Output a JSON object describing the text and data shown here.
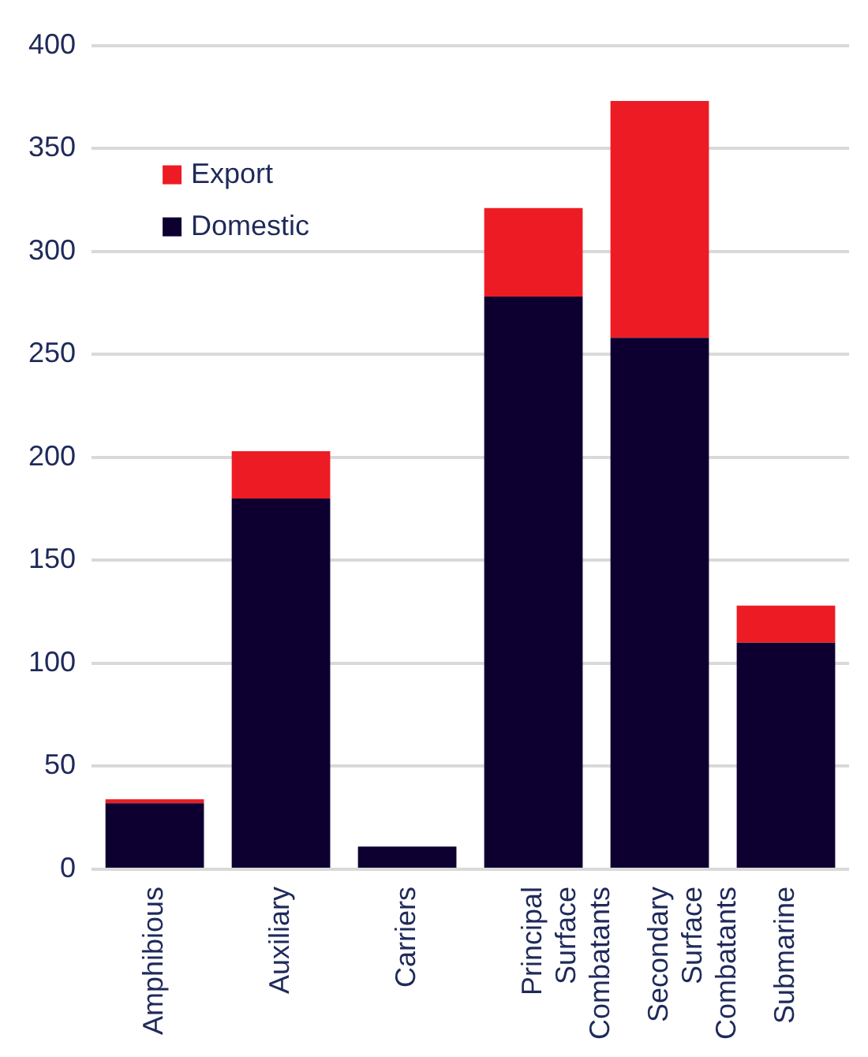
{
  "chart_data": {
    "type": "bar",
    "stacked": true,
    "categories": [
      "Amphibious",
      "Auxiliary",
      "Carriers",
      "Principal Surface Combatants",
      "Secondary Surface Combatants",
      "Submarine"
    ],
    "series": [
      {
        "name": "Domestic",
        "color": "#0d0030",
        "values": [
          32,
          180,
          11,
          278,
          258,
          110
        ]
      },
      {
        "name": "Export",
        "color": "#ed1c24",
        "values": [
          2,
          23,
          0,
          43,
          115,
          18
        ]
      }
    ],
    "ylim": [
      0,
      400
    ],
    "yticks": [
      0,
      50,
      100,
      150,
      200,
      250,
      300,
      350,
      400
    ],
    "grid": "y",
    "legend": "top left"
  }
}
